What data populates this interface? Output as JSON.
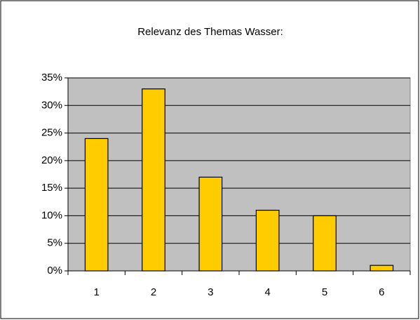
{
  "chart_data": {
    "type": "bar",
    "title": "Relevanz des Themas Wasser:",
    "categories": [
      "1",
      "2",
      "3",
      "4",
      "5",
      "6"
    ],
    "values": [
      24,
      33,
      17,
      11,
      10,
      1
    ],
    "color": "#ffcc00",
    "ylim": [
      0,
      35
    ],
    "yticks": [
      {
        "value": 0,
        "label": "0%"
      },
      {
        "value": 5,
        "label": "5%"
      },
      {
        "value": 10,
        "label": "10%"
      },
      {
        "value": 15,
        "label": "15%"
      },
      {
        "value": 20,
        "label": "20%"
      },
      {
        "value": 25,
        "label": "25%"
      },
      {
        "value": 30,
        "label": "30%"
      },
      {
        "value": 35,
        "label": "35%"
      }
    ],
    "grid": true
  }
}
